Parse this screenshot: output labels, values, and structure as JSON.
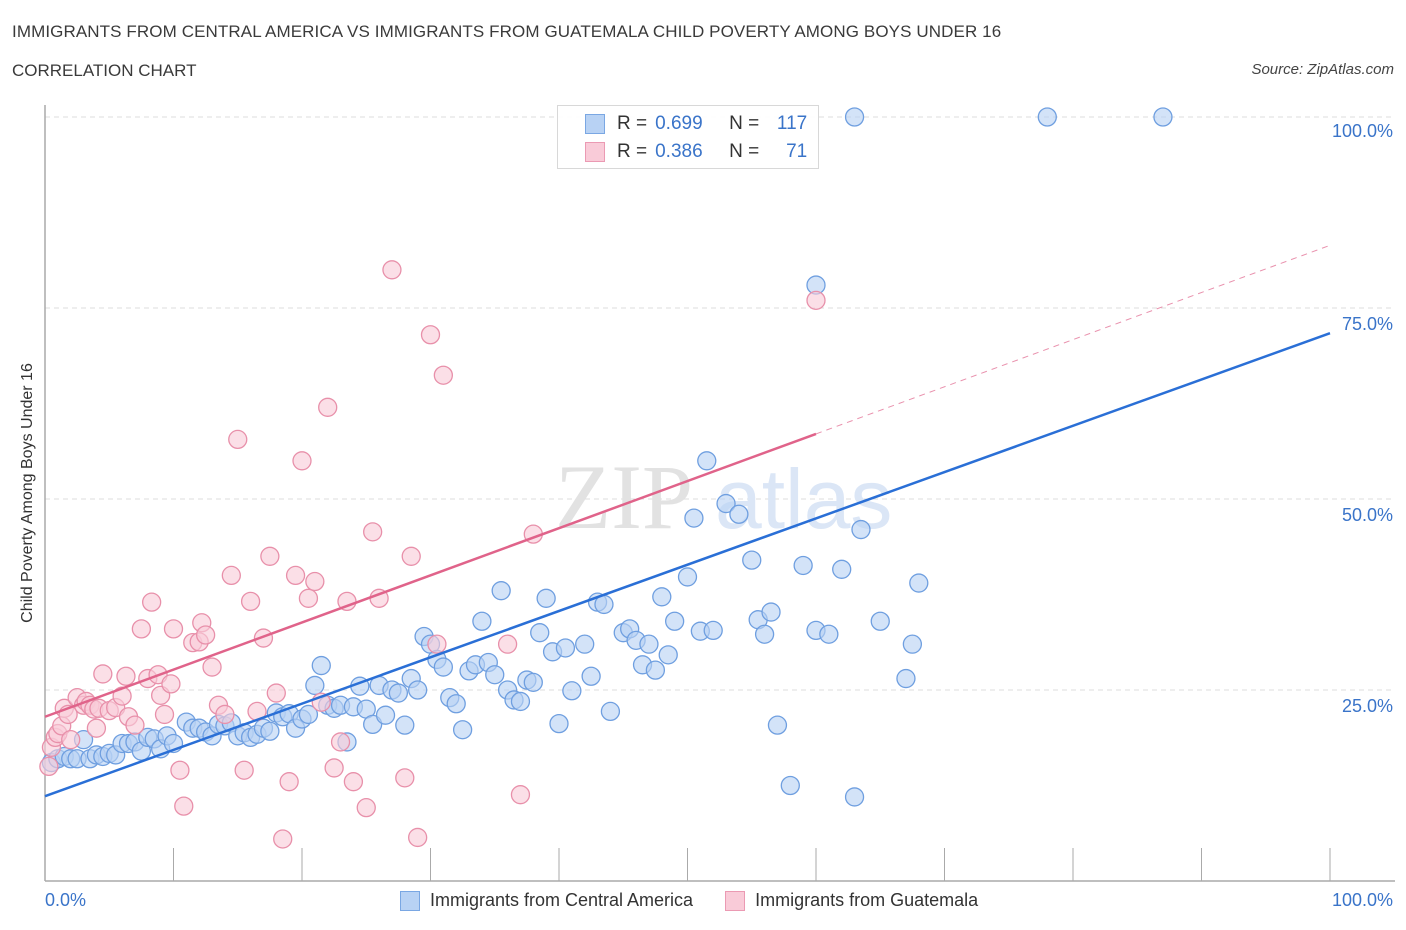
{
  "header": {
    "title": "IMMIGRANTS FROM CENTRAL AMERICA VS IMMIGRANTS FROM GUATEMALA CHILD POVERTY AMONG BOYS UNDER 16",
    "subtitle": "CORRELATION CHART",
    "source": "Source: ZipAtlas.com"
  },
  "watermark": {
    "zip": "ZIP",
    "atlas": "atlas"
  },
  "legend": {
    "rows": [
      {
        "r_label": "R =",
        "r_value": "0.699",
        "n_label": "N =",
        "n_value": "117"
      },
      {
        "r_label": "R =",
        "r_value": "0.386",
        "n_label": "N =",
        "n_value": "71"
      }
    ]
  },
  "chart_data": {
    "type": "scatter",
    "title": "IMMIGRANTS FROM CENTRAL AMERICA VS IMMIGRANTS FROM GUATEMALA CHILD POVERTY AMONG BOYS UNDER 16",
    "subtitle": "CORRELATION CHART",
    "xlabel": "",
    "ylabel": "Child Poverty Among Boys Under 16",
    "xlim": [
      0,
      100
    ],
    "ylim": [
      0,
      100
    ],
    "x_tick_labels": [
      "0.0%",
      "100.0%"
    ],
    "y_ticks": [
      25,
      50,
      75,
      100
    ],
    "y_tick_labels": [
      "25.0%",
      "50.0%",
      "75.0%",
      "100.0%"
    ],
    "grid": true,
    "legend_position": "top-center",
    "series": [
      {
        "name": "Immigrants from Central America",
        "color": "#6f9fe0",
        "fill": "#b8d2f4",
        "line_color": "#2a6fd6",
        "R": 0.699,
        "N": 117,
        "trend": {
          "x": [
            0,
            100
          ],
          "y": [
            11.1,
            71.7
          ],
          "dashed_from": null
        },
        "points": [
          [
            0.5,
            15.5
          ],
          [
            1,
            16
          ],
          [
            1.5,
            16.3
          ],
          [
            2,
            16
          ],
          [
            2.5,
            16
          ],
          [
            3,
            18.5
          ],
          [
            3.5,
            16
          ],
          [
            4,
            16.5
          ],
          [
            4.5,
            16.3
          ],
          [
            5,
            16.7
          ],
          [
            5.5,
            16.5
          ],
          [
            6,
            18
          ],
          [
            6.5,
            18
          ],
          [
            7,
            18.2
          ],
          [
            7.5,
            17
          ],
          [
            8,
            18.8
          ],
          [
            8.5,
            18.6
          ],
          [
            9,
            17.3
          ],
          [
            9.5,
            19
          ],
          [
            10,
            18
          ],
          [
            11,
            20.8
          ],
          [
            11.5,
            20
          ],
          [
            12,
            20
          ],
          [
            12.5,
            19.5
          ],
          [
            13,
            19
          ],
          [
            13.5,
            20.5
          ],
          [
            14,
            20.3
          ],
          [
            14.5,
            20.7
          ],
          [
            15,
            19
          ],
          [
            15.5,
            19.4
          ],
          [
            16,
            18.8
          ],
          [
            16.5,
            19.2
          ],
          [
            17,
            20
          ],
          [
            17.5,
            19.6
          ],
          [
            18,
            22
          ],
          [
            18.5,
            21.5
          ],
          [
            19,
            21.9
          ],
          [
            19.5,
            20
          ],
          [
            20,
            21.2
          ],
          [
            20.5,
            21.8
          ],
          [
            21,
            25.6
          ],
          [
            21.5,
            28.2
          ],
          [
            22,
            23
          ],
          [
            22.5,
            22.6
          ],
          [
            23,
            23
          ],
          [
            23.5,
            18.2
          ],
          [
            24,
            22.8
          ],
          [
            24.5,
            25.5
          ],
          [
            25,
            22.5
          ],
          [
            25.5,
            20.5
          ],
          [
            26,
            25.6
          ],
          [
            26.5,
            21.7
          ],
          [
            27,
            25
          ],
          [
            27.5,
            24.6
          ],
          [
            28,
            20.4
          ],
          [
            28.5,
            26.5
          ],
          [
            29,
            25
          ],
          [
            29.5,
            32
          ],
          [
            30,
            31
          ],
          [
            30.5,
            29
          ],
          [
            31,
            28
          ],
          [
            31.5,
            24
          ],
          [
            32,
            23.2
          ],
          [
            32.5,
            19.8
          ],
          [
            33,
            27.5
          ],
          [
            33.5,
            28.3
          ],
          [
            34,
            34
          ],
          [
            34.5,
            28.6
          ],
          [
            35,
            27
          ],
          [
            35.5,
            38
          ],
          [
            36,
            25
          ],
          [
            36.5,
            23.7
          ],
          [
            37,
            23.5
          ],
          [
            37.5,
            26.3
          ],
          [
            38,
            26
          ],
          [
            38.5,
            32.5
          ],
          [
            39,
            37
          ],
          [
            39.5,
            30
          ],
          [
            40,
            20.6
          ],
          [
            40.5,
            30.5
          ],
          [
            41,
            24.9
          ],
          [
            42,
            31
          ],
          [
            42.5,
            26.8
          ],
          [
            43,
            36.5
          ],
          [
            43.5,
            36.2
          ],
          [
            44,
            22.2
          ],
          [
            45,
            32.5
          ],
          [
            45.5,
            33
          ],
          [
            46,
            31.5
          ],
          [
            46.5,
            28.3
          ],
          [
            47,
            31
          ],
          [
            47.5,
            27.6
          ],
          [
            48,
            37.2
          ],
          [
            48.5,
            29.6
          ],
          [
            49,
            34
          ],
          [
            50,
            39.8
          ],
          [
            50.5,
            47.5
          ],
          [
            51,
            32.7
          ],
          [
            51.5,
            55
          ],
          [
            52,
            32.8
          ],
          [
            53,
            49.4
          ],
          [
            54,
            48
          ],
          [
            55,
            42
          ],
          [
            55.5,
            34.2
          ],
          [
            56,
            32.3
          ],
          [
            56.5,
            35.2
          ],
          [
            57,
            20.4
          ],
          [
            58,
            12.5
          ],
          [
            59,
            41.3
          ],
          [
            60,
            32.8
          ],
          [
            61,
            32.3
          ],
          [
            62,
            40.8
          ],
          [
            63,
            11
          ],
          [
            63.5,
            46
          ],
          [
            65,
            34
          ],
          [
            67,
            26.5
          ],
          [
            67.5,
            31
          ],
          [
            68,
            39
          ],
          [
            60,
            78
          ],
          [
            63,
            100
          ],
          [
            78,
            100
          ],
          [
            87,
            100
          ]
        ]
      },
      {
        "name": "Immigrants from Guatemala",
        "color": "#e890aa",
        "fill": "#f9cbd8",
        "line_color": "#e0638a",
        "R": 0.386,
        "N": 71,
        "trend": {
          "x": [
            0,
            100
          ],
          "y": [
            21.5,
            83.2
          ],
          "dashed_from": 60
        },
        "points": [
          [
            0.3,
            15
          ],
          [
            0.5,
            17.5
          ],
          [
            0.8,
            18.8
          ],
          [
            1,
            19.3
          ],
          [
            1.3,
            20.3
          ],
          [
            1.5,
            22.6
          ],
          [
            1.8,
            21.8
          ],
          [
            2,
            18.5
          ],
          [
            2.5,
            24
          ],
          [
            3,
            23
          ],
          [
            3.2,
            23.5
          ],
          [
            3.5,
            23
          ],
          [
            3.8,
            22.5
          ],
          [
            4,
            20
          ],
          [
            4.2,
            22.6
          ],
          [
            4.5,
            27.1
          ],
          [
            5,
            22.3
          ],
          [
            5.5,
            22.7
          ],
          [
            6,
            24.2
          ],
          [
            6.3,
            26.8
          ],
          [
            6.5,
            21.5
          ],
          [
            7,
            20.4
          ],
          [
            7.5,
            33
          ],
          [
            8,
            26.5
          ],
          [
            8.3,
            36.5
          ],
          [
            8.8,
            27
          ],
          [
            9,
            24.3
          ],
          [
            9.3,
            21.8
          ],
          [
            9.8,
            25.8
          ],
          [
            10,
            33
          ],
          [
            10.5,
            14.5
          ],
          [
            10.8,
            9.8
          ],
          [
            11.5,
            31.2
          ],
          [
            12,
            31.3
          ],
          [
            12.2,
            33.8
          ],
          [
            12.5,
            32.2
          ],
          [
            13,
            28
          ],
          [
            13.5,
            23
          ],
          [
            14,
            21.8
          ],
          [
            14.5,
            40
          ],
          [
            15,
            57.8
          ],
          [
            15.5,
            14.5
          ],
          [
            16,
            36.6
          ],
          [
            16.5,
            22.2
          ],
          [
            17,
            31.8
          ],
          [
            17.5,
            42.5
          ],
          [
            18,
            24.6
          ],
          [
            18.5,
            5.5
          ],
          [
            19,
            13
          ],
          [
            19.5,
            40
          ],
          [
            20,
            55
          ],
          [
            20.5,
            37
          ],
          [
            21,
            39.2
          ],
          [
            21.5,
            23.4
          ],
          [
            22,
            62
          ],
          [
            22.5,
            14.8
          ],
          [
            23,
            18.2
          ],
          [
            23.5,
            36.6
          ],
          [
            24,
            13
          ],
          [
            25,
            9.6
          ],
          [
            25.5,
            45.7
          ],
          [
            26,
            37
          ],
          [
            27,
            80
          ],
          [
            28,
            13.5
          ],
          [
            28.5,
            42.5
          ],
          [
            29,
            5.7
          ],
          [
            30,
            71.5
          ],
          [
            30.5,
            31
          ],
          [
            31,
            66.2
          ],
          [
            36,
            31
          ],
          [
            37,
            11.3
          ],
          [
            38,
            45.4
          ],
          [
            60,
            76
          ]
        ]
      }
    ]
  },
  "axes": {
    "x_left_label": "0.0%",
    "x_right_label": "100.0%",
    "y_labels": [
      "100.0%",
      "75.0%",
      "50.0%",
      "25.0%"
    ]
  }
}
